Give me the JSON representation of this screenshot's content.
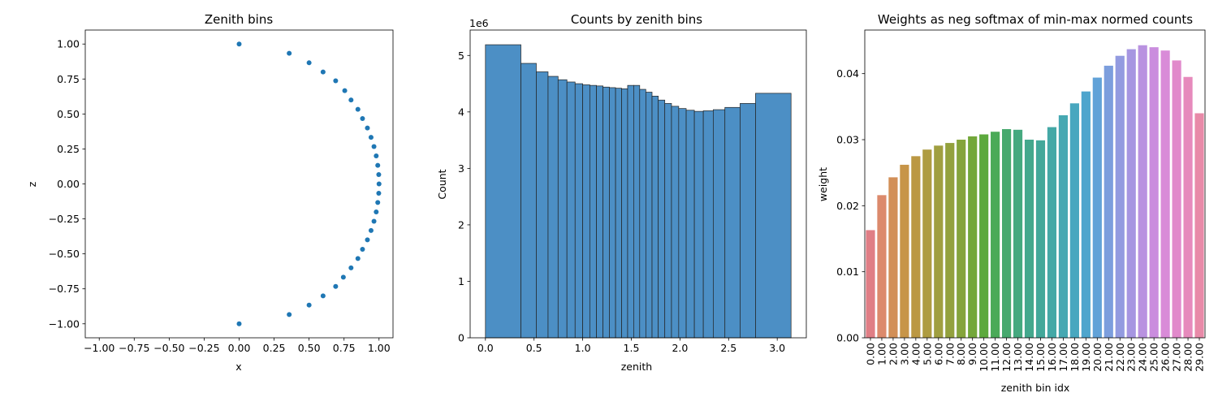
{
  "chart_data": [
    {
      "type": "scatter",
      "title": "Zenith bins",
      "xlabel": "x",
      "ylabel": "z",
      "xlim": [
        -1.1,
        1.1
      ],
      "ylim": [
        -1.1,
        1.1
      ],
      "xticks": [
        -1.0,
        -0.75,
        -0.5,
        -0.25,
        0.0,
        0.25,
        0.5,
        0.75,
        1.0
      ],
      "xtick_labels": [
        "−1.00",
        "−0.75",
        "−0.50",
        "−0.25",
        "0.00",
        "0.25",
        "0.50",
        "0.75",
        "1.00"
      ],
      "yticks": [
        -1.0,
        -0.75,
        -0.5,
        -0.25,
        0.0,
        0.25,
        0.5,
        0.75,
        1.0
      ],
      "ytick_labels": [
        "−1.00",
        "−0.75",
        "−0.50",
        "−0.25",
        "0.00",
        "0.25",
        "0.50",
        "0.75",
        "1.00"
      ],
      "color": "#1f77b4",
      "points": [
        [
          0.0,
          1.0
        ],
        [
          0.358,
          0.934
        ],
        [
          0.5,
          0.866
        ],
        [
          0.6,
          0.8
        ],
        [
          0.69,
          0.737
        ],
        [
          0.755,
          0.667
        ],
        [
          0.8,
          0.6
        ],
        [
          0.849,
          0.533
        ],
        [
          0.882,
          0.467
        ],
        [
          0.917,
          0.4
        ],
        [
          0.943,
          0.333
        ],
        [
          0.964,
          0.267
        ],
        [
          0.98,
          0.2
        ],
        [
          0.991,
          0.133
        ],
        [
          0.998,
          0.067
        ],
        [
          1.0,
          0.0
        ],
        [
          0.998,
          -0.067
        ],
        [
          0.991,
          -0.133
        ],
        [
          0.98,
          -0.2
        ],
        [
          0.964,
          -0.267
        ],
        [
          0.943,
          -0.333
        ],
        [
          0.917,
          -0.4
        ],
        [
          0.882,
          -0.467
        ],
        [
          0.849,
          -0.533
        ],
        [
          0.8,
          -0.6
        ],
        [
          0.745,
          -0.667
        ],
        [
          0.69,
          -0.733
        ],
        [
          0.6,
          -0.8
        ],
        [
          0.5,
          -0.866
        ],
        [
          0.358,
          -0.934
        ],
        [
          0.0,
          -1.0
        ]
      ],
      "grid": false
    },
    {
      "type": "bar",
      "subtype": "histogram",
      "title": "Counts by zenith bins",
      "xlabel": "zenith",
      "ylabel": "Count",
      "y_scale_label": "1e6",
      "xlim": [
        -0.157,
        3.299
      ],
      "ylim": [
        0,
        5.45
      ],
      "xticks": [
        0.0,
        0.5,
        1.0,
        1.5,
        2.0,
        2.5,
        3.0
      ],
      "xtick_labels": [
        "0.0",
        "0.5",
        "1.0",
        "1.5",
        "2.0",
        "2.5",
        "3.0"
      ],
      "yticks": [
        0,
        1,
        2,
        3,
        4,
        5
      ],
      "ytick_labels": [
        "0",
        "1",
        "2",
        "3",
        "4",
        "5"
      ],
      "color": "#4c8fc5",
      "edge_color": "#222222",
      "bins": [
        {
          "x0": 0.0,
          "x1": 0.365,
          "value": 5.19
        },
        {
          "x0": 0.365,
          "x1": 0.523,
          "value": 4.86
        },
        {
          "x0": 0.523,
          "x1": 0.644,
          "value": 4.71
        },
        {
          "x0": 0.644,
          "x1": 0.747,
          "value": 4.63
        },
        {
          "x0": 0.747,
          "x1": 0.838,
          "value": 4.57
        },
        {
          "x0": 0.838,
          "x1": 0.922,
          "value": 4.53
        },
        {
          "x0": 0.922,
          "x1": 1.0,
          "value": 4.5
        },
        {
          "x0": 1.0,
          "x1": 1.073,
          "value": 4.48
        },
        {
          "x0": 1.073,
          "x1": 1.142,
          "value": 4.47
        },
        {
          "x0": 1.142,
          "x1": 1.209,
          "value": 4.46
        },
        {
          "x0": 1.209,
          "x1": 1.274,
          "value": 4.44
        },
        {
          "x0": 1.274,
          "x1": 1.338,
          "value": 4.43
        },
        {
          "x0": 1.338,
          "x1": 1.4,
          "value": 4.42
        },
        {
          "x0": 1.4,
          "x1": 1.462,
          "value": 4.41
        },
        {
          "x0": 1.462,
          "x1": 1.524,
          "value": 4.47
        },
        {
          "x0": 1.524,
          "x1": 1.586,
          "value": 4.47
        },
        {
          "x0": 1.586,
          "x1": 1.649,
          "value": 4.4
        },
        {
          "x0": 1.649,
          "x1": 1.713,
          "value": 4.35
        },
        {
          "x0": 1.713,
          "x1": 1.777,
          "value": 4.28
        },
        {
          "x0": 1.777,
          "x1": 1.844,
          "value": 4.21
        },
        {
          "x0": 1.844,
          "x1": 1.913,
          "value": 4.15
        },
        {
          "x0": 1.913,
          "x1": 1.987,
          "value": 4.1
        },
        {
          "x0": 1.987,
          "x1": 2.064,
          "value": 4.06
        },
        {
          "x0": 2.064,
          "x1": 2.148,
          "value": 4.03
        },
        {
          "x0": 2.148,
          "x1": 2.24,
          "value": 4.01
        },
        {
          "x0": 2.24,
          "x1": 2.342,
          "value": 4.02
        },
        {
          "x0": 2.342,
          "x1": 2.462,
          "value": 4.04
        },
        {
          "x0": 2.462,
          "x1": 2.618,
          "value": 4.08
        },
        {
          "x0": 2.618,
          "x1": 2.777,
          "value": 4.15
        },
        {
          "x0": 2.777,
          "x1": 3.142,
          "value": 4.33
        }
      ],
      "grid": false
    },
    {
      "type": "bar",
      "title": "Weights as neg softmax of min-max normed counts",
      "xlabel": "zenith bin idx",
      "ylabel": "weight",
      "ylim": [
        0,
        0.0466
      ],
      "yticks": [
        0.0,
        0.01,
        0.02,
        0.03,
        0.04
      ],
      "ytick_labels": [
        "0.00",
        "0.01",
        "0.02",
        "0.03",
        "0.04"
      ],
      "categories": [
        "0.00",
        "1.00",
        "2.00",
        "3.00",
        "4.00",
        "5.00",
        "6.00",
        "7.00",
        "8.00",
        "9.00",
        "10.00",
        "11.00",
        "12.00",
        "13.00",
        "14.00",
        "15.00",
        "16.00",
        "17.00",
        "18.00",
        "19.00",
        "20.00",
        "21.00",
        "22.00",
        "23.00",
        "24.00",
        "25.00",
        "26.00",
        "27.00",
        "28.00",
        "29.00"
      ],
      "values": [
        0.0163,
        0.0216,
        0.0243,
        0.0262,
        0.0275,
        0.0285,
        0.0291,
        0.0295,
        0.03,
        0.0305,
        0.0308,
        0.0312,
        0.0316,
        0.0315,
        0.03,
        0.0299,
        0.0319,
        0.0337,
        0.0355,
        0.0373,
        0.0394,
        0.0412,
        0.0427,
        0.0437,
        0.0443,
        0.044,
        0.0435,
        0.042,
        0.0395,
        0.034
      ],
      "colors": [
        "#e07e85",
        "#dc8a6c",
        "#d28f57",
        "#c79548",
        "#bb9843",
        "#ae9c41",
        "#a09f40",
        "#93a13d",
        "#85a43b",
        "#73a73a",
        "#5ca93d",
        "#4baa58",
        "#47a96e",
        "#45a97f",
        "#44a88d",
        "#43a89a",
        "#44a8a6",
        "#46a8b2",
        "#48a7bf",
        "#4ea5cd",
        "#61a2d8",
        "#7c9edd",
        "#939be0",
        "#a696e1",
        "#b992e0",
        "#ca8dde",
        "#d98bd8",
        "#e189cb",
        "#e68abc",
        "#e88aa8"
      ],
      "grid": false
    }
  ]
}
